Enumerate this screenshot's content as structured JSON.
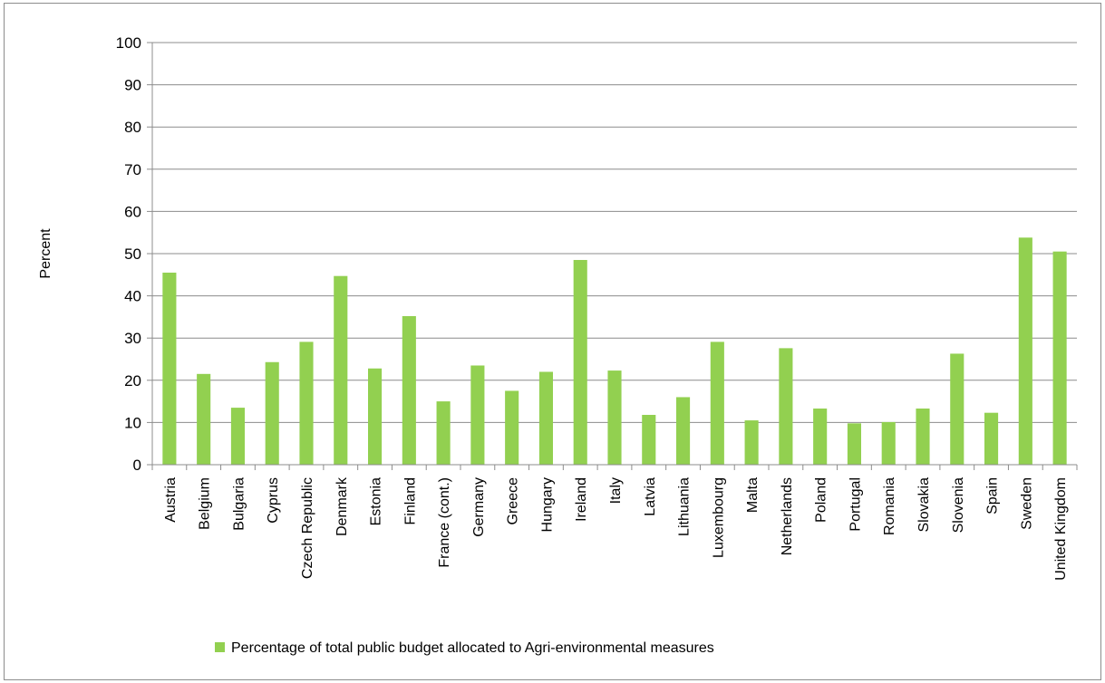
{
  "chart_data": {
    "type": "bar",
    "ylabel": "Percent",
    "xlabel": "",
    "ylim": [
      0,
      100
    ],
    "yticks": [
      0,
      10,
      20,
      30,
      40,
      50,
      60,
      70,
      80,
      90,
      100
    ],
    "grid": true,
    "legend_position": "bottom",
    "bar_color": "#92d050",
    "categories": [
      "Austria",
      "Belgium",
      "Bulgaria",
      "Cyprus",
      "Czech Republic",
      "Denmark",
      "Estonia",
      "Finland",
      "France (cont.)",
      "Germany",
      "Greece",
      "Hungary",
      "Ireland",
      "Italy",
      "Latvia",
      "Lithuania",
      "Luxembourg",
      "Malta",
      "Netherlands",
      "Poland",
      "Portugal",
      "Romania",
      "Slovakia",
      "Slovenia",
      "Spain",
      "Sweden",
      "United Kingdom"
    ],
    "series": [
      {
        "name": "Percentage of total public budget allocated to Agri-environmental measures",
        "values": [
          45.5,
          21.5,
          13.5,
          24.3,
          29.1,
          44.7,
          22.8,
          35.2,
          15.0,
          23.5,
          17.5,
          22.0,
          48.5,
          22.3,
          11.8,
          16.0,
          29.1,
          10.5,
          27.6,
          13.3,
          9.8,
          10.1,
          13.3,
          26.3,
          12.3,
          53.8,
          50.5
        ]
      }
    ]
  }
}
